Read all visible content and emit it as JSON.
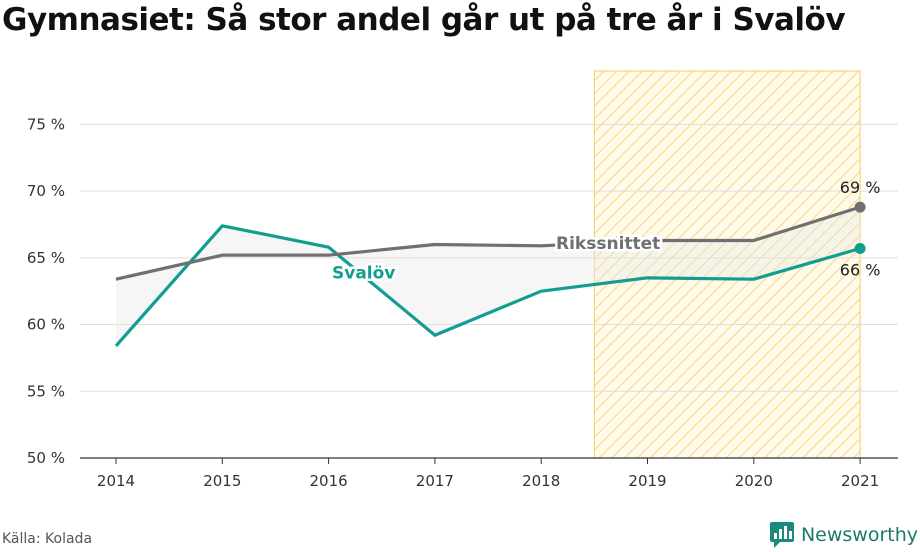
{
  "title": "Gymnasiet: Så stor andel går ut på tre år i Svalöv",
  "source": "Källa: Kolada",
  "brand": {
    "name": "Newsworthy",
    "icon": "newsworthy-logo-icon"
  },
  "colors": {
    "svalov": "#119e90",
    "riks": "#707070",
    "highlight": "#f3cf63",
    "grid": "#dddddd"
  },
  "chart_data": {
    "type": "line",
    "title": "Gymnasiet: Så stor andel går ut på tre år i Svalöv",
    "x": [
      "2014",
      "2015",
      "2016",
      "2017",
      "2018",
      "2019",
      "2020",
      "2021"
    ],
    "series": [
      {
        "name": "Svalöv",
        "values": [
          58.4,
          67.4,
          65.8,
          59.2,
          62.5,
          63.5,
          63.4,
          65.7
        ]
      },
      {
        "name": "Rikssnittet",
        "values": [
          63.4,
          65.2,
          65.2,
          66.0,
          65.9,
          66.3,
          66.3,
          68.8
        ]
      }
    ],
    "ylim": [
      50,
      79
    ],
    "yticks": [
      50,
      55,
      60,
      65,
      70,
      75
    ],
    "ytick_labels": [
      "50 %",
      "55 %",
      "60 %",
      "65 %",
      "70 %",
      "75 %"
    ],
    "highlight_range": [
      "2019",
      "2021"
    ],
    "end_labels": {
      "Rikssnittet": "69 %",
      "Svalöv": "66 %"
    },
    "grid": true,
    "legend": "none"
  }
}
